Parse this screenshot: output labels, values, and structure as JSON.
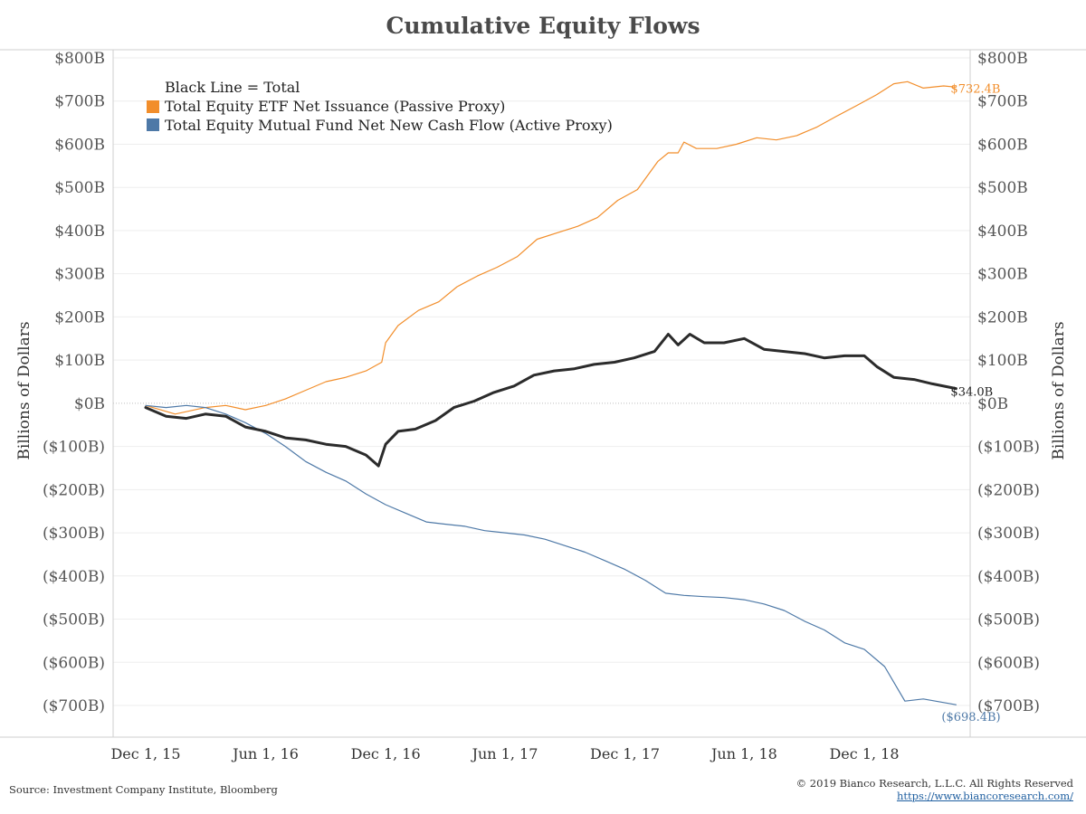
{
  "chart_data": {
    "type": "line",
    "title": "Cumulative Equity Flows",
    "ylabel_left": "Billions of Dollars",
    "ylabel_right": "Billions of Dollars",
    "ylim": [
      -800,
      800
    ],
    "yticks": [
      800,
      700,
      600,
      500,
      400,
      300,
      200,
      100,
      0,
      -100,
      -200,
      -300,
      -400,
      -500,
      -600,
      -700
    ],
    "ytick_labels": [
      "$800B",
      "$700B",
      "$600B",
      "$500B",
      "$400B",
      "$300B",
      "$200B",
      "$100B",
      "$0B",
      "($100B)",
      "($200B)",
      "($300B)",
      "($400B)",
      "($500B)",
      "($600B)",
      "($700B)"
    ],
    "xlim": [
      "2015-10-01",
      "2019-06-01"
    ],
    "xticks": [
      "2015-12-01",
      "2016-06-01",
      "2016-12-01",
      "2017-06-01",
      "2017-12-01",
      "2018-06-01",
      "2018-12-01"
    ],
    "xtick_labels": [
      "Dec 1, 15",
      "Jun 1, 16",
      "Dec 1, 16",
      "Jun 1, 17",
      "Dec 1, 17",
      "Jun 1, 18",
      "Dec 1, 18"
    ],
    "grid": "horizontal",
    "legend": {
      "placement": "top-left",
      "heading": "Black Line = Total",
      "entries": [
        {
          "label": "Total Equity ETF Net Issuance (Passive Proxy)",
          "color": "#f28e2b"
        },
        {
          "label": "Total Equity Mutual Fund Net New Cash Flow (Active Proxy)",
          "color": "#4e79a7"
        }
      ]
    },
    "series": [
      {
        "key": "etf",
        "color": "#f28e2b",
        "end_label": "$732.4B",
        "points": [
          [
            "2015-12-01",
            -5
          ],
          [
            "2016-01-15",
            -25
          ],
          [
            "2016-03-01",
            -10
          ],
          [
            "2016-04-01",
            -5
          ],
          [
            "2016-05-01",
            -15
          ],
          [
            "2016-06-01",
            -5
          ],
          [
            "2016-07-01",
            10
          ],
          [
            "2016-08-01",
            30
          ],
          [
            "2016-09-01",
            50
          ],
          [
            "2016-10-01",
            60
          ],
          [
            "2016-11-01",
            75
          ],
          [
            "2016-11-25",
            95
          ],
          [
            "2016-12-01",
            140
          ],
          [
            "2016-12-20",
            180
          ],
          [
            "2017-01-20",
            215
          ],
          [
            "2017-02-20",
            235
          ],
          [
            "2017-03-20",
            270
          ],
          [
            "2017-04-20",
            295
          ],
          [
            "2017-05-20",
            315
          ],
          [
            "2017-06-20",
            340
          ],
          [
            "2017-07-20",
            380
          ],
          [
            "2017-08-20",
            395
          ],
          [
            "2017-09-20",
            410
          ],
          [
            "2017-10-20",
            430
          ],
          [
            "2017-11-20",
            470
          ],
          [
            "2017-12-20",
            495
          ],
          [
            "2018-01-20",
            560
          ],
          [
            "2018-02-05",
            580
          ],
          [
            "2018-02-20",
            580
          ],
          [
            "2018-03-01",
            605
          ],
          [
            "2018-03-20",
            590
          ],
          [
            "2018-04-20",
            590
          ],
          [
            "2018-05-20",
            600
          ],
          [
            "2018-06-20",
            615
          ],
          [
            "2018-07-20",
            610
          ],
          [
            "2018-08-20",
            620
          ],
          [
            "2018-09-20",
            640
          ],
          [
            "2018-10-20",
            665
          ],
          [
            "2018-11-20",
            690
          ],
          [
            "2018-12-20",
            715
          ],
          [
            "2019-01-15",
            740
          ],
          [
            "2019-02-05",
            745
          ],
          [
            "2019-03-01",
            730
          ],
          [
            "2019-04-01",
            735
          ],
          [
            "2019-04-20",
            732.4
          ]
        ]
      },
      {
        "key": "mutual",
        "color": "#4e79a7",
        "end_label": "($698.4B)",
        "points": [
          [
            "2015-12-01",
            -5
          ],
          [
            "2016-01-01",
            -10
          ],
          [
            "2016-02-01",
            -5
          ],
          [
            "2016-03-01",
            -10
          ],
          [
            "2016-04-01",
            -25
          ],
          [
            "2016-05-01",
            -45
          ],
          [
            "2016-06-01",
            -70
          ],
          [
            "2016-07-01",
            -100
          ],
          [
            "2016-08-01",
            -135
          ],
          [
            "2016-09-01",
            -160
          ],
          [
            "2016-10-01",
            -180
          ],
          [
            "2016-11-01",
            -210
          ],
          [
            "2016-12-01",
            -235
          ],
          [
            "2017-01-01",
            -255
          ],
          [
            "2017-02-01",
            -275
          ],
          [
            "2017-03-01",
            -280
          ],
          [
            "2017-04-01",
            -285
          ],
          [
            "2017-05-01",
            -295
          ],
          [
            "2017-06-01",
            -300
          ],
          [
            "2017-07-01",
            -305
          ],
          [
            "2017-08-01",
            -315
          ],
          [
            "2017-09-01",
            -330
          ],
          [
            "2017-10-01",
            -345
          ],
          [
            "2017-11-01",
            -365
          ],
          [
            "2017-12-01",
            -385
          ],
          [
            "2018-01-01",
            -410
          ],
          [
            "2018-02-01",
            -440
          ],
          [
            "2018-03-01",
            -445
          ],
          [
            "2018-04-01",
            -448
          ],
          [
            "2018-05-01",
            -450
          ],
          [
            "2018-06-01",
            -455
          ],
          [
            "2018-07-01",
            -465
          ],
          [
            "2018-08-01",
            -480
          ],
          [
            "2018-09-01",
            -505
          ],
          [
            "2018-10-01",
            -525
          ],
          [
            "2018-11-01",
            -555
          ],
          [
            "2018-12-01",
            -570
          ],
          [
            "2019-01-01",
            -610
          ],
          [
            "2019-02-01",
            -690
          ],
          [
            "2019-03-01",
            -685
          ],
          [
            "2019-04-20",
            -698.4
          ]
        ]
      },
      {
        "key": "total",
        "color": "#2b2b2b",
        "end_label": "$34.0B",
        "points": [
          [
            "2015-12-01",
            -10
          ],
          [
            "2016-01-01",
            -30
          ],
          [
            "2016-02-01",
            -35
          ],
          [
            "2016-03-01",
            -25
          ],
          [
            "2016-04-01",
            -30
          ],
          [
            "2016-05-01",
            -55
          ],
          [
            "2016-06-01",
            -65
          ],
          [
            "2016-07-01",
            -80
          ],
          [
            "2016-08-01",
            -85
          ],
          [
            "2016-09-01",
            -95
          ],
          [
            "2016-10-01",
            -100
          ],
          [
            "2016-11-01",
            -120
          ],
          [
            "2016-11-20",
            -145
          ],
          [
            "2016-12-01",
            -95
          ],
          [
            "2016-12-20",
            -65
          ],
          [
            "2017-01-15",
            -60
          ],
          [
            "2017-02-15",
            -40
          ],
          [
            "2017-03-15",
            -10
          ],
          [
            "2017-04-15",
            5
          ],
          [
            "2017-05-15",
            25
          ],
          [
            "2017-06-15",
            40
          ],
          [
            "2017-07-15",
            65
          ],
          [
            "2017-08-15",
            75
          ],
          [
            "2017-09-15",
            80
          ],
          [
            "2017-10-15",
            90
          ],
          [
            "2017-11-15",
            95
          ],
          [
            "2017-12-15",
            105
          ],
          [
            "2018-01-15",
            120
          ],
          [
            "2018-02-05",
            160
          ],
          [
            "2018-02-20",
            135
          ],
          [
            "2018-03-10",
            160
          ],
          [
            "2018-04-01",
            140
          ],
          [
            "2018-05-01",
            140
          ],
          [
            "2018-06-01",
            150
          ],
          [
            "2018-07-01",
            125
          ],
          [
            "2018-08-01",
            120
          ],
          [
            "2018-09-01",
            115
          ],
          [
            "2018-10-01",
            105
          ],
          [
            "2018-11-01",
            110
          ],
          [
            "2018-12-01",
            110
          ],
          [
            "2018-12-20",
            85
          ],
          [
            "2019-01-15",
            60
          ],
          [
            "2019-02-15",
            55
          ],
          [
            "2019-03-15",
            45
          ],
          [
            "2019-04-20",
            34
          ]
        ]
      }
    ]
  },
  "footer": {
    "source": "Source: Investment Company Institute, Bloomberg",
    "copyright": "© 2019 Bianco Research, L.L.C. All Rights Reserved",
    "url": "https://www.biancoresearch.com/"
  }
}
